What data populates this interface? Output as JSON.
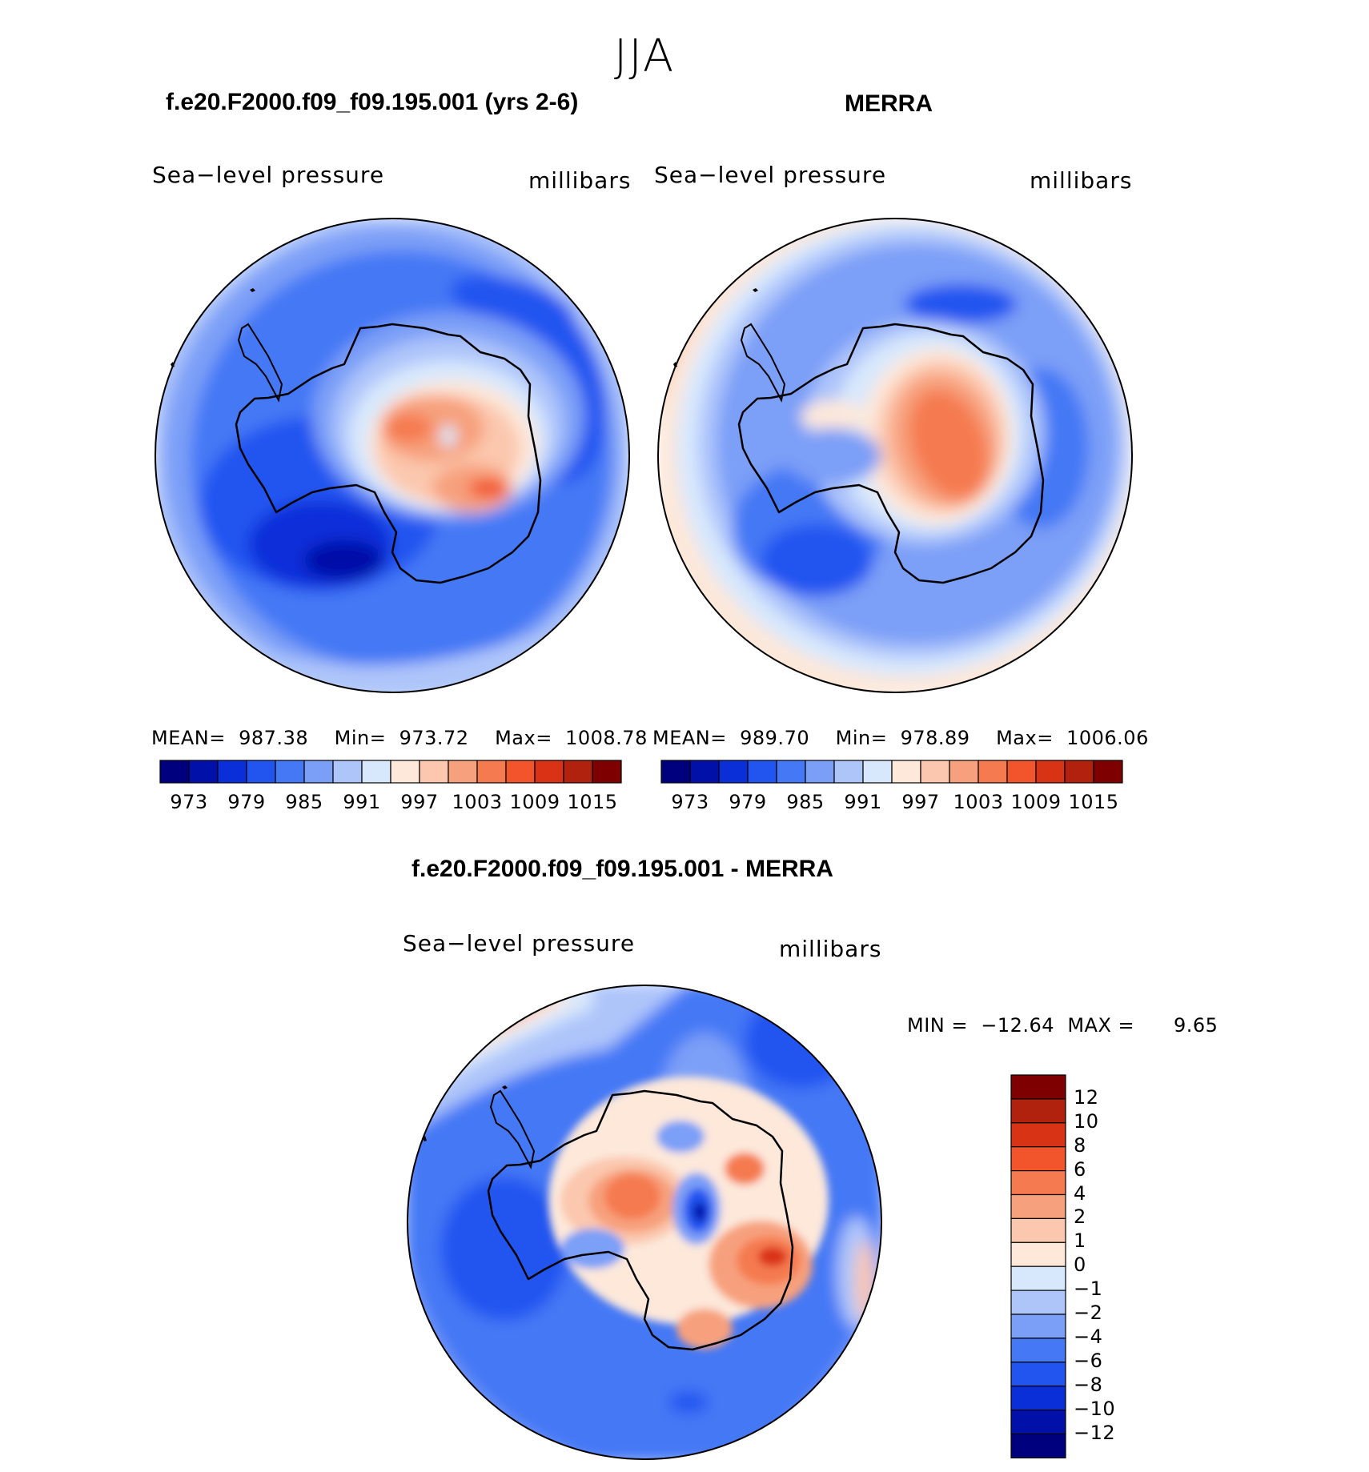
{
  "title": "JJA",
  "panels": [
    {
      "id": "model",
      "title": "f.e20.F2000.f09_f09.195.001 (yrs 2-6)",
      "variable": "Sea−level pressure",
      "units": "millibars",
      "stats": {
        "mean_label": "MEAN=",
        "mean": "987.38",
        "min_label": "Min=",
        "min": "973.72",
        "max_label": "Max=",
        "max": "1008.78"
      },
      "colorbar_ticks": [
        "973",
        "979",
        "985",
        "991",
        "997",
        "1003",
        "1009",
        "1015"
      ]
    },
    {
      "id": "obs",
      "title": "MERRA",
      "variable": "Sea−level pressure",
      "units": "millibars",
      "stats": {
        "mean_label": "MEAN=",
        "mean": "989.70",
        "min_label": "Min=",
        "min": "978.89",
        "max_label": "Max=",
        "max": "1006.06"
      },
      "colorbar_ticks": [
        "973",
        "979",
        "985",
        "991",
        "997",
        "1003",
        "1009",
        "1015"
      ]
    },
    {
      "id": "diff",
      "title": "f.e20.F2000.f09_f09.195.001 - MERRA",
      "variable": "Sea−level pressure",
      "units": "millibars",
      "stats": {
        "min_label": "MIN =",
        "min": "−12.64",
        "max_label": "MAX =",
        "max": "9.65"
      },
      "colorbar_ticks": [
        "12",
        "10",
        "8",
        "6",
        "4",
        "2",
        "1",
        "0",
        "−1",
        "−2",
        "−4",
        "−6",
        "−8",
        "−10",
        "−12"
      ]
    }
  ],
  "colors": {
    "abs_scale": [
      "#00007f",
      "#0010a8",
      "#0a2fd9",
      "#2255f0",
      "#4478f5",
      "#7b9ff7",
      "#aec5fa",
      "#d8e8fc",
      "#fde8da",
      "#fbc7ae",
      "#f7a07d",
      "#f57a4f",
      "#f2542b",
      "#d93316",
      "#b0220d",
      "#7e0000"
    ],
    "diff_scale": [
      "#7e0000",
      "#b0220d",
      "#d93316",
      "#f2542b",
      "#f57a4f",
      "#f7a07d",
      "#fbc7ae",
      "#fde8da",
      "#d8e8fc",
      "#aec5fa",
      "#7b9ff7",
      "#4478f5",
      "#2255f0",
      "#0a2fd9",
      "#0010a8",
      "#00007f"
    ],
    "coastline": "#000000"
  }
}
